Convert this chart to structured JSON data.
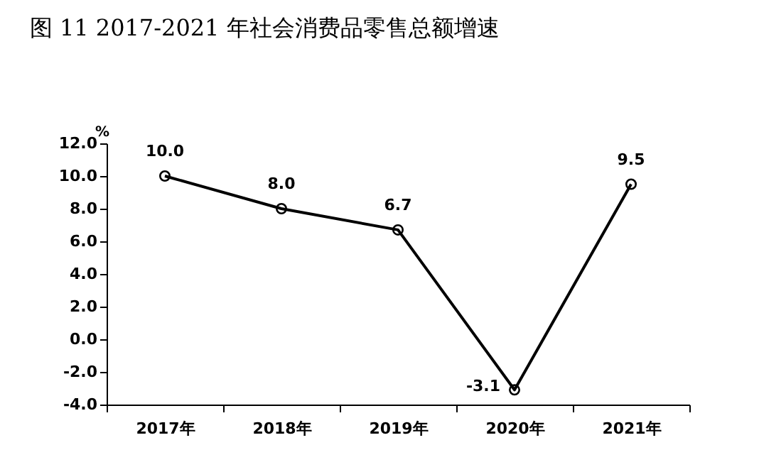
{
  "chart_data": {
    "type": "line",
    "title": "图 11   2017-2021 年社会消费品零售总额增速",
    "ylabel": "%",
    "categories": [
      "2017年",
      "2018年",
      "2019年",
      "2020年",
      "2021年"
    ],
    "series": [
      {
        "color": "#000000",
        "values": [
          10.0,
          8.0,
          6.7,
          -3.1,
          9.5
        ]
      }
    ],
    "value_labels": [
      "10.0",
      "8.0",
      "6.7",
      "-3.1",
      "9.5"
    ],
    "ylim": [
      -4,
      12
    ],
    "yticks": [
      {
        "value": -4,
        "label": "-4.0"
      },
      {
        "value": -2,
        "label": "-2.0"
      },
      {
        "value": 0,
        "label": "0.0"
      },
      {
        "value": 2,
        "label": "2.0"
      },
      {
        "value": 4,
        "label": "4.0"
      },
      {
        "value": 6,
        "label": "6.0"
      },
      {
        "value": 8,
        "label": "8.0"
      },
      {
        "value": 10,
        "label": "10.0"
      },
      {
        "value": 12,
        "label": "12.0"
      }
    ],
    "marker": "circle",
    "line_style": "solid",
    "grid": false
  }
}
